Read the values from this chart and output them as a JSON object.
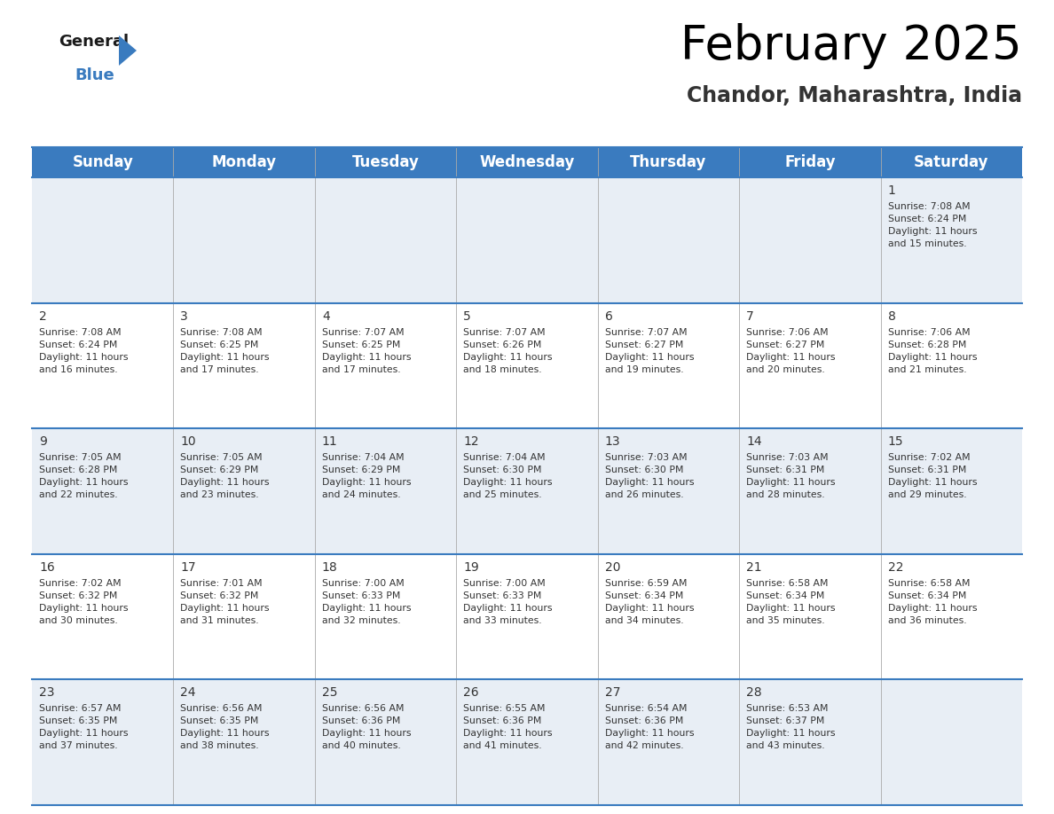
{
  "title": "February 2025",
  "subtitle": "Chandor, Maharashtra, India",
  "header_bg_color": "#3a7bbf",
  "header_text_color": "#ffffff",
  "cell_bg_odd": "#e8eef5",
  "cell_bg_even": "#ffffff",
  "border_color": "#3a7bbf",
  "day_number_color": "#333333",
  "cell_text_color": "#333333",
  "days_of_week": [
    "Sunday",
    "Monday",
    "Tuesday",
    "Wednesday",
    "Thursday",
    "Friday",
    "Saturday"
  ],
  "calendar_data": [
    [
      null,
      null,
      null,
      null,
      null,
      null,
      {
        "day": 1,
        "sunrise": "7:08 AM",
        "sunset": "6:24 PM",
        "daylight_hours": 11,
        "daylight_minutes": 15
      }
    ],
    [
      {
        "day": 2,
        "sunrise": "7:08 AM",
        "sunset": "6:24 PM",
        "daylight_hours": 11,
        "daylight_minutes": 16
      },
      {
        "day": 3,
        "sunrise": "7:08 AM",
        "sunset": "6:25 PM",
        "daylight_hours": 11,
        "daylight_minutes": 17
      },
      {
        "day": 4,
        "sunrise": "7:07 AM",
        "sunset": "6:25 PM",
        "daylight_hours": 11,
        "daylight_minutes": 17
      },
      {
        "day": 5,
        "sunrise": "7:07 AM",
        "sunset": "6:26 PM",
        "daylight_hours": 11,
        "daylight_minutes": 18
      },
      {
        "day": 6,
        "sunrise": "7:07 AM",
        "sunset": "6:27 PM",
        "daylight_hours": 11,
        "daylight_minutes": 19
      },
      {
        "day": 7,
        "sunrise": "7:06 AM",
        "sunset": "6:27 PM",
        "daylight_hours": 11,
        "daylight_minutes": 20
      },
      {
        "day": 8,
        "sunrise": "7:06 AM",
        "sunset": "6:28 PM",
        "daylight_hours": 11,
        "daylight_minutes": 21
      }
    ],
    [
      {
        "day": 9,
        "sunrise": "7:05 AM",
        "sunset": "6:28 PM",
        "daylight_hours": 11,
        "daylight_minutes": 22
      },
      {
        "day": 10,
        "sunrise": "7:05 AM",
        "sunset": "6:29 PM",
        "daylight_hours": 11,
        "daylight_minutes": 23
      },
      {
        "day": 11,
        "sunrise": "7:04 AM",
        "sunset": "6:29 PM",
        "daylight_hours": 11,
        "daylight_minutes": 24
      },
      {
        "day": 12,
        "sunrise": "7:04 AM",
        "sunset": "6:30 PM",
        "daylight_hours": 11,
        "daylight_minutes": 25
      },
      {
        "day": 13,
        "sunrise": "7:03 AM",
        "sunset": "6:30 PM",
        "daylight_hours": 11,
        "daylight_minutes": 26
      },
      {
        "day": 14,
        "sunrise": "7:03 AM",
        "sunset": "6:31 PM",
        "daylight_hours": 11,
        "daylight_minutes": 28
      },
      {
        "day": 15,
        "sunrise": "7:02 AM",
        "sunset": "6:31 PM",
        "daylight_hours": 11,
        "daylight_minutes": 29
      }
    ],
    [
      {
        "day": 16,
        "sunrise": "7:02 AM",
        "sunset": "6:32 PM",
        "daylight_hours": 11,
        "daylight_minutes": 30
      },
      {
        "day": 17,
        "sunrise": "7:01 AM",
        "sunset": "6:32 PM",
        "daylight_hours": 11,
        "daylight_minutes": 31
      },
      {
        "day": 18,
        "sunrise": "7:00 AM",
        "sunset": "6:33 PM",
        "daylight_hours": 11,
        "daylight_minutes": 32
      },
      {
        "day": 19,
        "sunrise": "7:00 AM",
        "sunset": "6:33 PM",
        "daylight_hours": 11,
        "daylight_minutes": 33
      },
      {
        "day": 20,
        "sunrise": "6:59 AM",
        "sunset": "6:34 PM",
        "daylight_hours": 11,
        "daylight_minutes": 34
      },
      {
        "day": 21,
        "sunrise": "6:58 AM",
        "sunset": "6:34 PM",
        "daylight_hours": 11,
        "daylight_minutes": 35
      },
      {
        "day": 22,
        "sunrise": "6:58 AM",
        "sunset": "6:34 PM",
        "daylight_hours": 11,
        "daylight_minutes": 36
      }
    ],
    [
      {
        "day": 23,
        "sunrise": "6:57 AM",
        "sunset": "6:35 PM",
        "daylight_hours": 11,
        "daylight_minutes": 37
      },
      {
        "day": 24,
        "sunrise": "6:56 AM",
        "sunset": "6:35 PM",
        "daylight_hours": 11,
        "daylight_minutes": 38
      },
      {
        "day": 25,
        "sunrise": "6:56 AM",
        "sunset": "6:36 PM",
        "daylight_hours": 11,
        "daylight_minutes": 40
      },
      {
        "day": 26,
        "sunrise": "6:55 AM",
        "sunset": "6:36 PM",
        "daylight_hours": 11,
        "daylight_minutes": 41
      },
      {
        "day": 27,
        "sunrise": "6:54 AM",
        "sunset": "6:36 PM",
        "daylight_hours": 11,
        "daylight_minutes": 42
      },
      {
        "day": 28,
        "sunrise": "6:53 AM",
        "sunset": "6:37 PM",
        "daylight_hours": 11,
        "daylight_minutes": 43
      },
      null
    ]
  ],
  "n_rows": 5,
  "n_cols": 7,
  "fig_width": 11.88,
  "fig_height": 9.18,
  "title_fontsize": 38,
  "subtitle_fontsize": 17,
  "header_fontsize": 12,
  "day_num_fontsize": 10,
  "cell_text_fontsize": 7.8,
  "logo_color_general": "#1a1a1a",
  "logo_color_blue": "#3a7bbf",
  "logo_triangle_color": "#3a7bbf"
}
